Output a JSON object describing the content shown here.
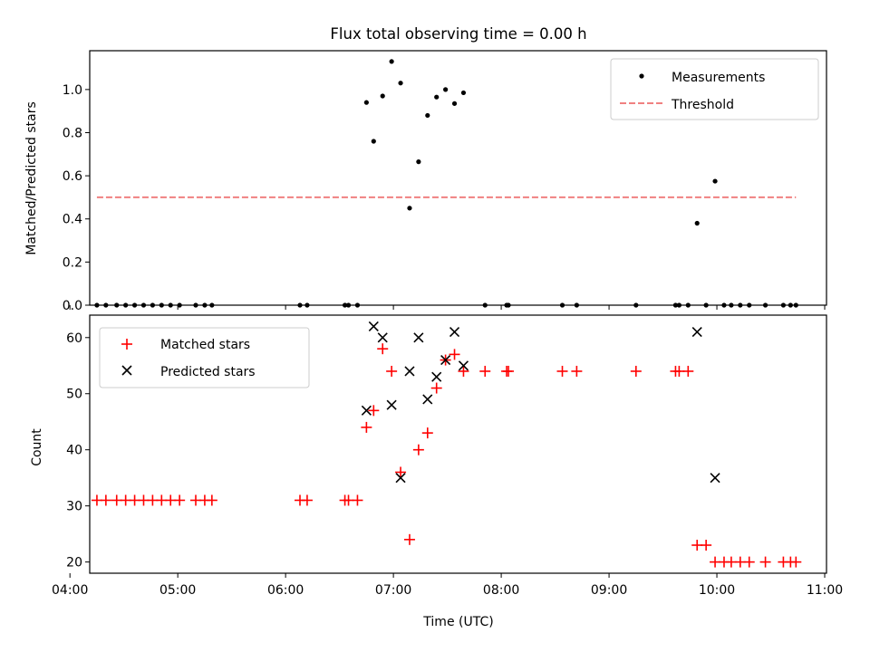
{
  "chart_data": [
    {
      "type": "scatter",
      "title": "Flux total observing time = 0.00 h",
      "ylabel": "Matched/Predicted stars",
      "xlabel": "",
      "ylim": [
        0,
        1.18
      ],
      "xlim": [
        "04:11",
        "11:01"
      ],
      "yticks": [
        0.0,
        0.2,
        0.4,
        0.6,
        0.8,
        1.0
      ],
      "ytick_labels": [
        "0.0",
        "0.2",
        "0.4",
        "0.6",
        "0.8",
        "1.0"
      ],
      "grid": false,
      "legend": "top-right",
      "series": [
        {
          "name": "Measurements",
          "marker": "dot",
          "color": "#000000",
          "points": [
            [
              "04:15",
              0.0
            ],
            [
              "04:20",
              0.0
            ],
            [
              "04:26",
              0.0
            ],
            [
              "04:31",
              0.0
            ],
            [
              "04:36",
              0.0
            ],
            [
              "04:41",
              0.0
            ],
            [
              "04:46",
              0.0
            ],
            [
              "04:51",
              0.0
            ],
            [
              "04:56",
              0.0
            ],
            [
              "05:01",
              0.0
            ],
            [
              "05:10",
              0.0
            ],
            [
              "05:15",
              0.0
            ],
            [
              "05:19",
              0.0
            ],
            [
              "06:08",
              0.0
            ],
            [
              "06:12",
              0.0
            ],
            [
              "06:33",
              0.0
            ],
            [
              "06:35",
              0.0
            ],
            [
              "06:40",
              0.0
            ],
            [
              "06:45",
              0.94
            ],
            [
              "06:49",
              0.76
            ],
            [
              "06:54",
              0.97
            ],
            [
              "06:59",
              1.13
            ],
            [
              "07:04",
              1.03
            ],
            [
              "07:09",
              0.45
            ],
            [
              "07:14",
              0.665
            ],
            [
              "07:19",
              0.88
            ],
            [
              "07:24",
              0.965
            ],
            [
              "07:29",
              1.0
            ],
            [
              "07:34",
              0.935
            ],
            [
              "07:39",
              0.985
            ],
            [
              "07:51",
              0.0
            ],
            [
              "08:03",
              0.0
            ],
            [
              "08:04",
              0.0
            ],
            [
              "08:34",
              0.0
            ],
            [
              "08:42",
              0.0
            ],
            [
              "09:15",
              0.0
            ],
            [
              "09:37",
              0.0
            ],
            [
              "09:39",
              0.0
            ],
            [
              "09:44",
              0.0
            ],
            [
              "09:49",
              0.38
            ],
            [
              "09:54",
              0.0
            ],
            [
              "09:59",
              0.575
            ],
            [
              "10:04",
              0.0
            ],
            [
              "10:08",
              0.0
            ],
            [
              "10:13",
              0.0
            ],
            [
              "10:18",
              0.0
            ],
            [
              "10:27",
              0.0
            ],
            [
              "10:37",
              0.0
            ],
            [
              "10:41",
              0.0
            ],
            [
              "10:44",
              0.0
            ]
          ]
        },
        {
          "name": "Threshold",
          "marker": "dashed-line",
          "color": "#f08080",
          "points": [
            [
              "04:15",
              0.5
            ],
            [
              "10:44",
              0.5
            ]
          ]
        }
      ]
    },
    {
      "type": "scatter",
      "title": "",
      "ylabel": "Count",
      "xlabel": "Time (UTC)",
      "ylim": [
        18,
        64
      ],
      "xlim": [
        "04:11",
        "11:01"
      ],
      "yticks": [
        20,
        30,
        40,
        50,
        60
      ],
      "ytick_labels": [
        "20",
        "30",
        "40",
        "50",
        "60"
      ],
      "xticks": [
        "04:00",
        "05:00",
        "06:00",
        "07:00",
        "08:00",
        "09:00",
        "10:00",
        "11:00"
      ],
      "xtick_labels": [
        "04:00",
        "05:00",
        "06:00",
        "07:00",
        "08:00",
        "09:00",
        "10:00",
        "11:00"
      ],
      "grid": false,
      "legend": "top-left",
      "series": [
        {
          "name": "Matched stars",
          "marker": "plus",
          "color": "#ff0000",
          "points": [
            [
              "04:15",
              31
            ],
            [
              "04:20",
              31
            ],
            [
              "04:26",
              31
            ],
            [
              "04:31",
              31
            ],
            [
              "04:36",
              31
            ],
            [
              "04:41",
              31
            ],
            [
              "04:46",
              31
            ],
            [
              "04:51",
              31
            ],
            [
              "04:56",
              31
            ],
            [
              "05:01",
              31
            ],
            [
              "05:10",
              31
            ],
            [
              "05:15",
              31
            ],
            [
              "05:19",
              31
            ],
            [
              "06:08",
              31
            ],
            [
              "06:12",
              31
            ],
            [
              "06:33",
              31
            ],
            [
              "06:35",
              31
            ],
            [
              "06:40",
              31
            ],
            [
              "06:45",
              44
            ],
            [
              "06:49",
              47
            ],
            [
              "06:54",
              58
            ],
            [
              "06:59",
              54
            ],
            [
              "07:04",
              36
            ],
            [
              "07:09",
              24
            ],
            [
              "07:14",
              40
            ],
            [
              "07:19",
              43
            ],
            [
              "07:24",
              51
            ],
            [
              "07:29",
              56
            ],
            [
              "07:34",
              57
            ],
            [
              "07:39",
              54
            ],
            [
              "07:51",
              54
            ],
            [
              "08:03",
              54
            ],
            [
              "08:04",
              54
            ],
            [
              "08:34",
              54
            ],
            [
              "08:42",
              54
            ],
            [
              "09:15",
              54
            ],
            [
              "09:37",
              54
            ],
            [
              "09:39",
              54
            ],
            [
              "09:44",
              54
            ],
            [
              "09:49",
              23
            ],
            [
              "09:54",
              23
            ],
            [
              "09:59",
              20
            ],
            [
              "10:04",
              20
            ],
            [
              "10:08",
              20
            ],
            [
              "10:13",
              20
            ],
            [
              "10:18",
              20
            ],
            [
              "10:27",
              20
            ],
            [
              "10:37",
              20
            ],
            [
              "10:41",
              20
            ],
            [
              "10:44",
              20
            ]
          ]
        },
        {
          "name": "Predicted stars",
          "marker": "x",
          "color": "#000000",
          "points": [
            [
              "06:45",
              47
            ],
            [
              "06:49",
              62
            ],
            [
              "06:54",
              60
            ],
            [
              "06:59",
              48
            ],
            [
              "07:04",
              35
            ],
            [
              "07:09",
              54
            ],
            [
              "07:14",
              60
            ],
            [
              "07:19",
              49
            ],
            [
              "07:24",
              53
            ],
            [
              "07:29",
              56
            ],
            [
              "07:34",
              61
            ],
            [
              "07:39",
              55
            ],
            [
              "09:49",
              61
            ],
            [
              "09:59",
              35
            ]
          ]
        }
      ]
    }
  ]
}
